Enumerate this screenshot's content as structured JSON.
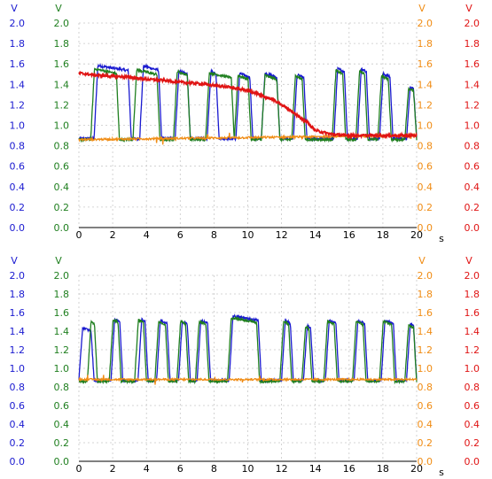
{
  "colors": {
    "axis1": "#1a1ad0",
    "axis2": "#1f7f1f",
    "axis3": "#f08c14",
    "axis4": "#e01414",
    "grid": "#c8c8c8",
    "xaxis": "#000000"
  },
  "chart_data": [
    {
      "type": "line",
      "title": "",
      "xlabel": "s",
      "xlim": [
        0,
        20
      ],
      "x_ticks": [
        "0",
        "2",
        "4",
        "6",
        "8",
        "10",
        "12",
        "14",
        "16",
        "18",
        "20"
      ],
      "grid": true,
      "axes": [
        {
          "side": "left-outer",
          "unit": "V",
          "ticks": [
            "0.0",
            "0.2",
            "0.4",
            "0.6",
            "0.8",
            "1.0",
            "1.2",
            "1.4",
            "1.6",
            "1.8",
            "2.0"
          ],
          "color_key": "axis1"
        },
        {
          "side": "left-inner",
          "unit": "V",
          "ticks": [
            "0.0",
            "0.2",
            "0.4",
            "0.6",
            "0.8",
            "1.0",
            "1.2",
            "1.4",
            "1.6",
            "1.8",
            "2.0"
          ],
          "color_key": "axis2"
        },
        {
          "side": "right-inner",
          "unit": "V",
          "ticks": [
            "0.0",
            "0.2",
            "0.4",
            "0.6",
            "0.8",
            "1.0",
            "1.2",
            "1.4",
            "1.6",
            "1.8",
            "2.0"
          ],
          "color_key": "axis3"
        },
        {
          "side": "right-outer",
          "unit": "V",
          "ticks": [
            "0.0",
            "0.2",
            "0.4",
            "0.6",
            "0.8",
            "1.0",
            "1.2",
            "1.4",
            "1.6",
            "1.8",
            "2.0"
          ],
          "color_key": "axis4"
        }
      ],
      "ylim": [
        0,
        2
      ],
      "series": [
        {
          "color_key": "axis1",
          "low": 0.87,
          "high": 1.58,
          "pulses": [
            [
              0.9,
              3.1
            ],
            [
              3.6,
              4.9
            ],
            [
              5.7,
              6.6
            ],
            [
              7.6,
              8.3
            ],
            [
              9.3,
              10.3
            ],
            [
              10.8,
              11.9
            ],
            [
              12.7,
              13.5
            ],
            [
              15.1,
              15.9
            ],
            [
              16.5,
              17.2
            ],
            [
              17.8,
              18.6
            ],
            [
              19.4,
              20.0
            ]
          ],
          "highs": [
            1.59,
            1.59,
            1.55,
            1.55,
            1.52,
            1.52,
            1.51,
            1.57,
            1.57,
            1.52,
            1.4
          ]
        },
        {
          "color_key": "axis2",
          "low": 0.86,
          "high": 1.56,
          "pulses": [
            [
              0.7,
              2.4
            ],
            [
              3.2,
              4.8
            ],
            [
              5.6,
              6.6
            ],
            [
              7.5,
              9.2
            ],
            [
              9.2,
              10.2
            ],
            [
              10.8,
              11.9
            ],
            [
              12.6,
              13.4
            ],
            [
              15.0,
              15.8
            ],
            [
              16.4,
              17.1
            ],
            [
              17.7,
              18.5
            ],
            [
              19.3,
              20.0
            ]
          ],
          "highs": [
            1.56,
            1.55,
            1.54,
            1.52,
            1.5,
            1.5,
            1.5,
            1.55,
            1.55,
            1.5,
            1.38
          ]
        },
        {
          "color_key": "axis3",
          "start": 0.86,
          "end": 0.9
        },
        {
          "color_key": "axis4",
          "x": [
            0,
            1,
            2,
            3,
            4,
            5,
            6,
            7,
            8,
            9,
            10,
            10.5,
            11,
            11.5,
            12,
            12.5,
            13,
            13.5,
            14,
            15,
            16,
            17,
            18,
            19,
            20
          ],
          "y": [
            1.51,
            1.49,
            1.48,
            1.47,
            1.45,
            1.44,
            1.42,
            1.41,
            1.39,
            1.37,
            1.34,
            1.31,
            1.28,
            1.25,
            1.2,
            1.15,
            1.09,
            1.03,
            0.95,
            0.91,
            0.9,
            0.9,
            0.9,
            0.9,
            0.9
          ]
        }
      ]
    },
    {
      "type": "line",
      "title": "",
      "xlabel": "s",
      "xlim": [
        0,
        20
      ],
      "x_ticks": [
        "0",
        "2",
        "4",
        "6",
        "8",
        "10",
        "12",
        "14",
        "16",
        "18",
        "20"
      ],
      "grid": true,
      "axes": [
        {
          "side": "left-outer",
          "unit": "V",
          "ticks": [
            "0.0",
            "0.2",
            "0.4",
            "0.6",
            "0.8",
            "1.0",
            "1.2",
            "1.4",
            "1.6",
            "1.8",
            "2.0"
          ],
          "color_key": "axis1"
        },
        {
          "side": "left-inner",
          "unit": "V",
          "ticks": [
            "0.0",
            "0.2",
            "0.4",
            "0.6",
            "0.8",
            "1.0",
            "1.2",
            "1.4",
            "1.6",
            "1.8",
            "2.0"
          ],
          "color_key": "axis2"
        },
        {
          "side": "right-inner",
          "unit": "V",
          "ticks": [
            "0.0",
            "0.2",
            "0.4",
            "0.6",
            "0.8",
            "1.0",
            "1.2",
            "1.4",
            "1.6",
            "1.8",
            "2.0"
          ],
          "color_key": "axis3"
        },
        {
          "side": "right-outer",
          "unit": "V",
          "ticks": [
            "0.0",
            "0.2",
            "0.4",
            "0.6",
            "0.8",
            "1.0",
            "1.2",
            "1.4",
            "1.6",
            "1.8",
            "2.0"
          ],
          "color_key": "axis4"
        }
      ],
      "ylim": [
        0,
        2
      ],
      "series": [
        {
          "color_key": "axis1",
          "low": 0.87,
          "high": 1.53,
          "pulses": [
            [
              0.0,
              0.9
            ],
            [
              1.9,
              2.6
            ],
            [
              3.5,
              4.1
            ],
            [
              4.6,
              5.4
            ],
            [
              5.9,
              6.6
            ],
            [
              7.0,
              7.8
            ],
            [
              8.9,
              10.8
            ],
            [
              12.0,
              12.7
            ],
            [
              13.3,
              13.9
            ],
            [
              14.6,
              15.4
            ],
            [
              16.3,
              17.1
            ],
            [
              17.9,
              18.8
            ],
            [
              19.4,
              20.0
            ]
          ],
          "highs": [
            1.45,
            1.55,
            1.55,
            1.53,
            1.52,
            1.53,
            1.57,
            1.53,
            1.48,
            1.53,
            1.53,
            1.53,
            1.5
          ]
        },
        {
          "color_key": "axis2",
          "low": 0.86,
          "high": 1.52,
          "pulses": [
            [
              0.5,
              1.1
            ],
            [
              1.8,
              2.5
            ],
            [
              3.3,
              4.0
            ],
            [
              4.5,
              5.3
            ],
            [
              5.8,
              6.5
            ],
            [
              6.9,
              7.7
            ],
            [
              8.8,
              10.7
            ],
            [
              11.9,
              12.6
            ],
            [
              13.2,
              13.8
            ],
            [
              14.5,
              15.3
            ],
            [
              16.2,
              17.0
            ],
            [
              17.8,
              18.7
            ],
            [
              19.3,
              20.0
            ]
          ],
          "highs": [
            1.52,
            1.54,
            1.54,
            1.52,
            1.52,
            1.52,
            1.55,
            1.52,
            1.47,
            1.52,
            1.52,
            1.52,
            1.48
          ]
        },
        {
          "color_key": "axis3",
          "start": 0.88,
          "end": 0.88
        }
      ]
    }
  ]
}
